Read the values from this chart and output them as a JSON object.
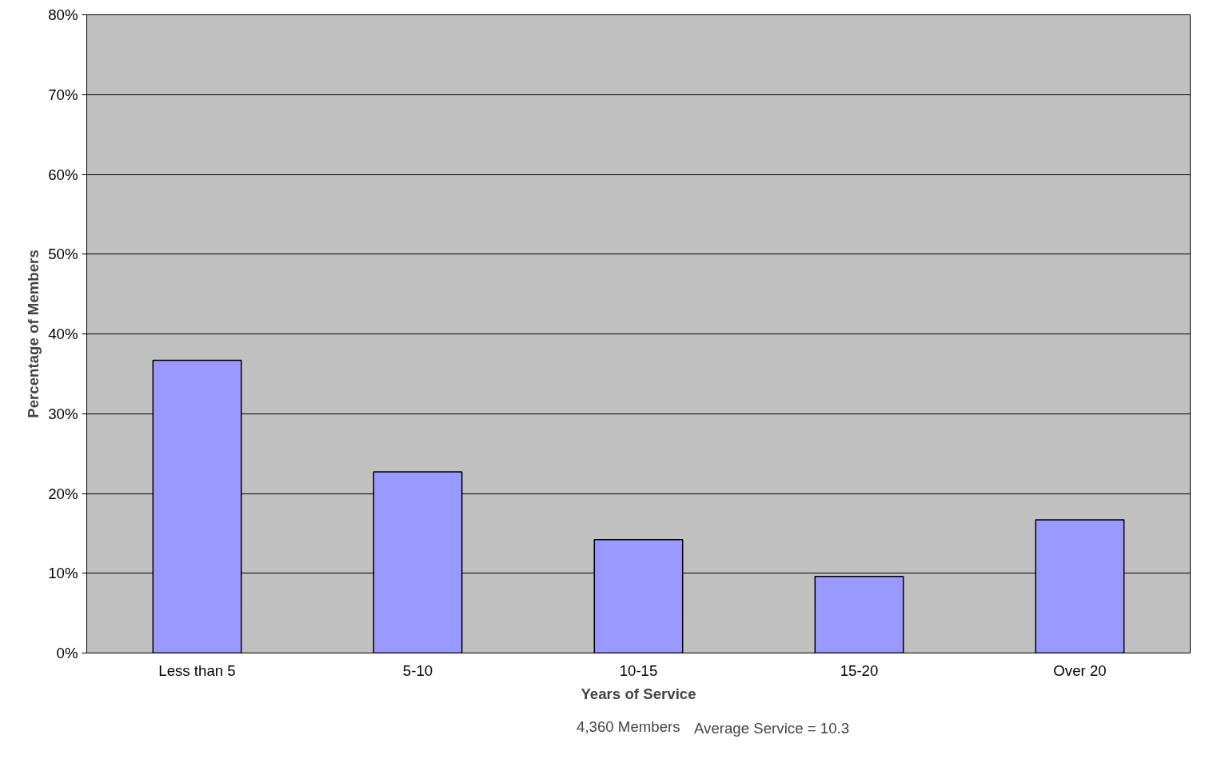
{
  "chart_data": {
    "type": "bar",
    "xlabel": "Years of Service",
    "ylabel": "Percentage of Members",
    "categories": [
      "Less than 5",
      "5-10",
      "10-15",
      "15-20",
      "Over 20"
    ],
    "series": [
      {
        "name": "4,360 Members",
        "color": "#9999ff",
        "values": [
          36.7,
          22.7,
          14.2,
          9.6,
          16.7
        ]
      }
    ],
    "ylim": [
      0,
      80
    ],
    "yticks": [
      {
        "value": 0,
        "label": "0%"
      },
      {
        "value": 10,
        "label": "10%"
      },
      {
        "value": 20,
        "label": "20%"
      },
      {
        "value": 30,
        "label": "30%"
      },
      {
        "value": 40,
        "label": "40%"
      },
      {
        "value": 50,
        "label": "50%"
      },
      {
        "value": 60,
        "label": "60%"
      },
      {
        "value": 70,
        "label": "70%"
      },
      {
        "value": 80,
        "label": "80%"
      }
    ],
    "grid": "y",
    "legend": "bottom",
    "annotations": [
      "Average Service = 10.3"
    ]
  }
}
